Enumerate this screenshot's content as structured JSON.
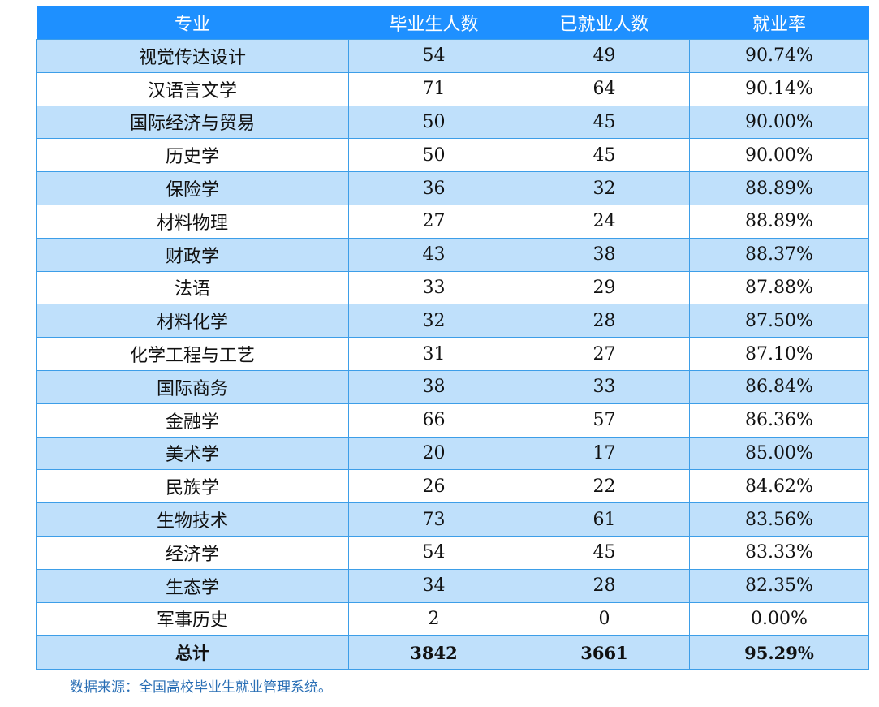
{
  "table": {
    "headers": [
      "专业",
      "毕业生人数",
      "已就业人数",
      "就业率"
    ],
    "rows": [
      [
        "视觉传达设计",
        "54",
        "49",
        "90.74%"
      ],
      [
        "汉语言文学",
        "71",
        "64",
        "90.14%"
      ],
      [
        "国际经济与贸易",
        "50",
        "45",
        "90.00%"
      ],
      [
        "历史学",
        "50",
        "45",
        "90.00%"
      ],
      [
        "保险学",
        "36",
        "32",
        "88.89%"
      ],
      [
        "材料物理",
        "27",
        "24",
        "88.89%"
      ],
      [
        "财政学",
        "43",
        "38",
        "88.37%"
      ],
      [
        "法语",
        "33",
        "29",
        "87.88%"
      ],
      [
        "材料化学",
        "32",
        "28",
        "87.50%"
      ],
      [
        "化学工程与工艺",
        "31",
        "27",
        "87.10%"
      ],
      [
        "国际商务",
        "38",
        "33",
        "86.84%"
      ],
      [
        "金融学",
        "66",
        "57",
        "86.36%"
      ],
      [
        "美术学",
        "20",
        "17",
        "85.00%"
      ],
      [
        "民族学",
        "26",
        "22",
        "84.62%"
      ],
      [
        "生物技术",
        "73",
        "61",
        "83.56%"
      ],
      [
        "经济学",
        "54",
        "45",
        "83.33%"
      ],
      [
        "生态学",
        "34",
        "28",
        "82.35%"
      ],
      [
        "军事历史",
        "2",
        "0",
        "0.00%"
      ]
    ],
    "total": [
      "总计",
      "3842",
      "3661",
      "95.29%"
    ]
  },
  "source_note": "数据来源：全国高校毕业生就业管理系统。",
  "colors": {
    "header_bg": "#1e90ff",
    "row_shade": "#bfe0fb",
    "border": "#3d9ee8",
    "note_text": "#2a6fb5"
  }
}
